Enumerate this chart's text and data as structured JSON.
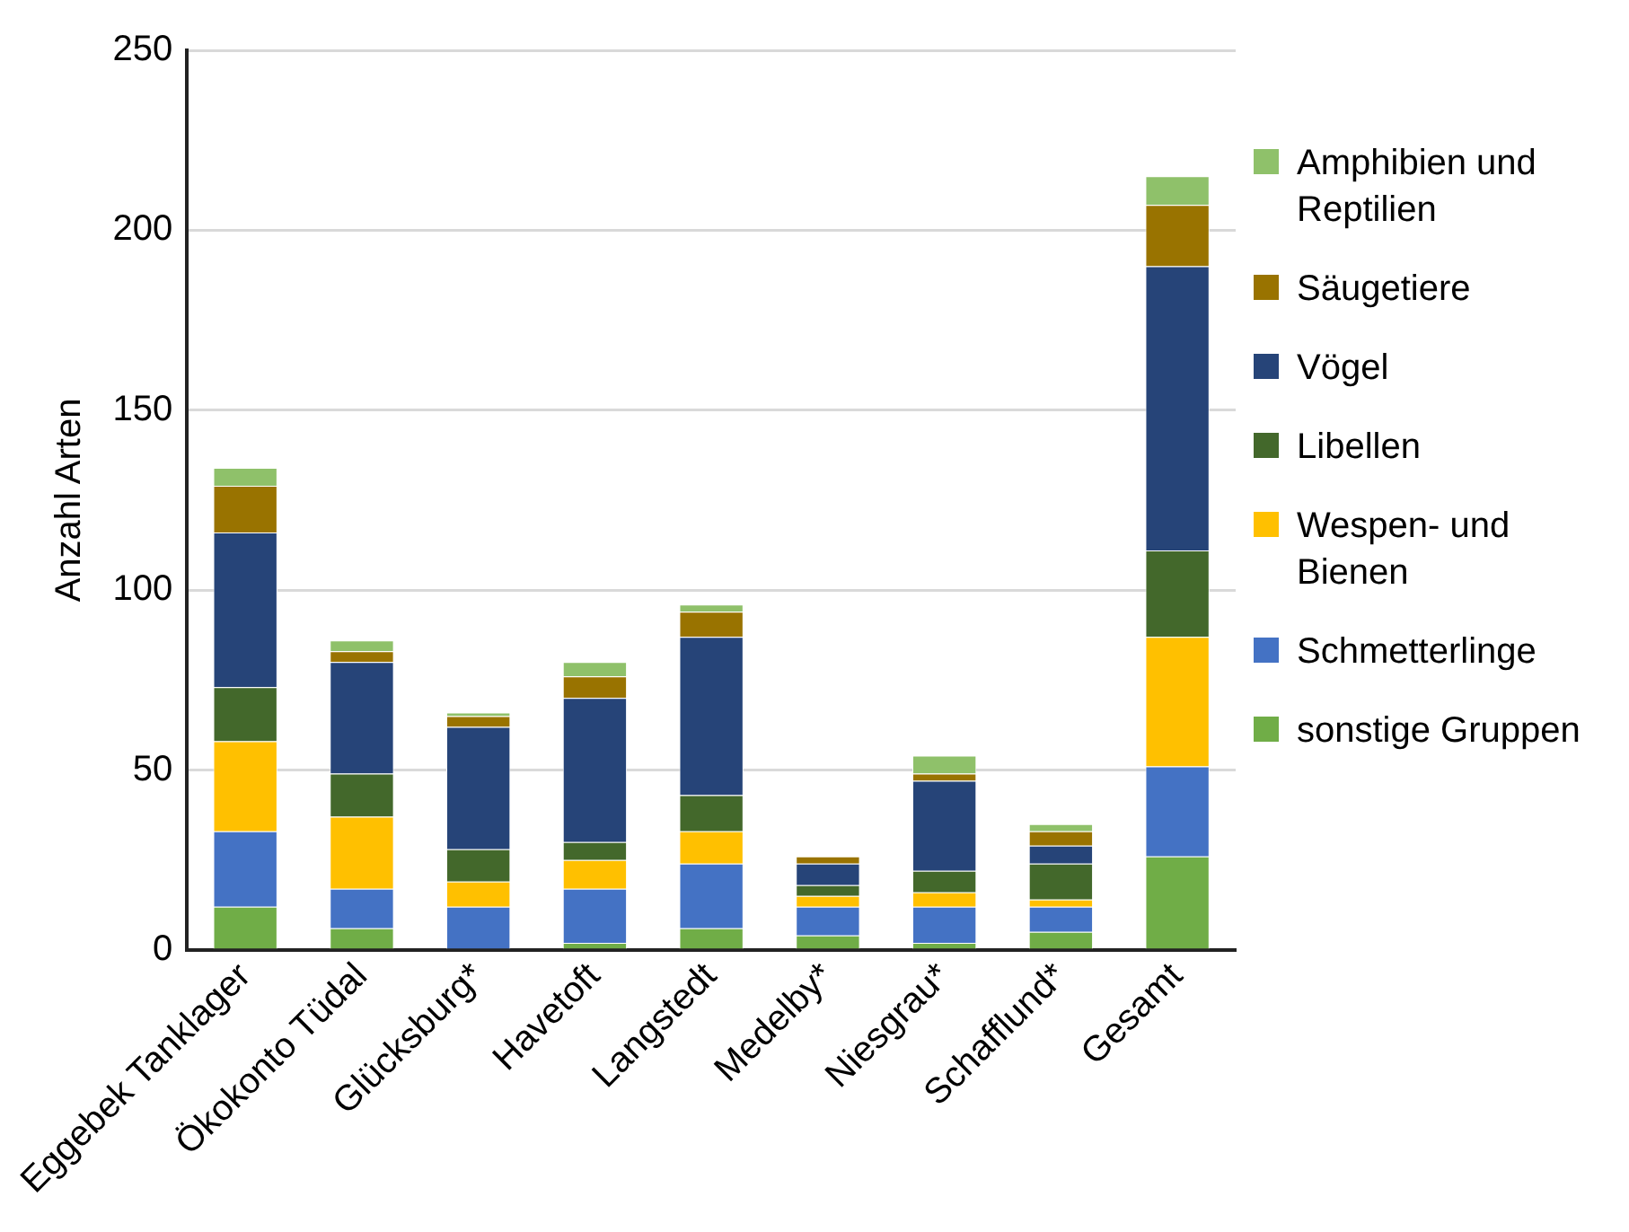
{
  "chart_data": {
    "type": "bar",
    "stacked": true,
    "ylabel": "Anzahl Arten",
    "categories": [
      "Eggebek Tanklager",
      "Ökokonto Tüdal",
      "Glücksburg*",
      "Havetoft",
      "Langstedt",
      "Medelby*",
      "Niesgrau*",
      "Schafflund*",
      "Gesamt"
    ],
    "series": [
      {
        "name": "sonstige Gruppen",
        "color": "#70ad47",
        "values": [
          12,
          6,
          0,
          2,
          6,
          4,
          2,
          5,
          26
        ]
      },
      {
        "name": "Schmetterlinge",
        "color": "#4472c4",
        "values": [
          21,
          11,
          12,
          15,
          18,
          8,
          10,
          7,
          25
        ]
      },
      {
        "name": "Wespen- und Bienen",
        "color": "#ffc000",
        "values": [
          25,
          20,
          7,
          8,
          9,
          3,
          4,
          2,
          36
        ]
      },
      {
        "name": "Libellen",
        "color": "#43682b",
        "values": [
          15,
          12,
          9,
          5,
          10,
          3,
          6,
          10,
          24
        ]
      },
      {
        "name": "Vögel",
        "color": "#264478",
        "values": [
          43,
          31,
          34,
          40,
          44,
          6,
          25,
          5,
          79
        ]
      },
      {
        "name": "Säugetiere",
        "color": "#997300",
        "values": [
          13,
          3,
          3,
          6,
          7,
          2,
          2,
          4,
          17
        ]
      },
      {
        "name": "Amphibien und Reptilien",
        "color": "#8fc16a",
        "values": [
          5,
          3,
          1,
          4,
          2,
          0,
          5,
          2,
          8
        ]
      }
    ],
    "ylim": [
      0,
      250
    ],
    "yticks": [
      0,
      50,
      100,
      150,
      200,
      250
    ],
    "grid": "y",
    "legend": "right"
  }
}
